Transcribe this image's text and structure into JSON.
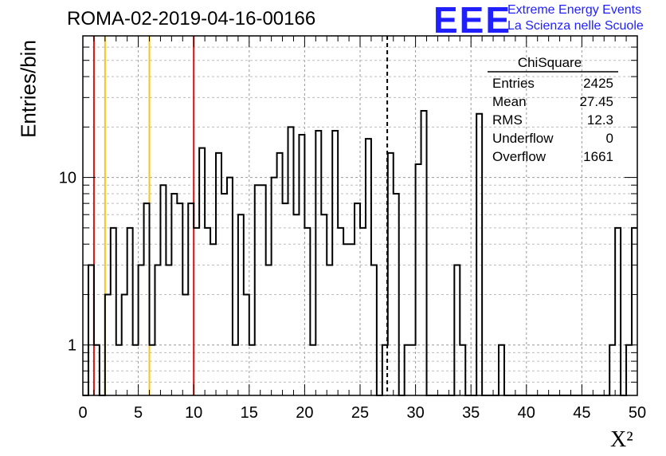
{
  "header": {
    "title": "ROMA-02-2019-04-16-00166",
    "brand_logo": "EEE",
    "brand_line1": "Extreme Energy Events",
    "brand_line2": "La Scienza nelle Scuole"
  },
  "stats_box": {
    "title": "ChiSquare",
    "rows": [
      {
        "label": "Entries",
        "value": "2425"
      },
      {
        "label": "Mean",
        "value": "27.45"
      },
      {
        "label": "RMS",
        "value": "12.3"
      },
      {
        "label": "Underflow",
        "value": "0"
      },
      {
        "label": "Overflow",
        "value": "1661"
      }
    ]
  },
  "colors": {
    "red_line": "#dd1111",
    "yellow_line": "#f5c518",
    "brand": "#1f1fff"
  },
  "chart_data": {
    "type": "histogram",
    "title": "ROMA-02-2019-04-16-00166",
    "xlabel": "X²",
    "ylabel": "Entries/bin",
    "xlim": [
      0,
      50
    ],
    "ylim": [
      0.5,
      70
    ],
    "yscale": "log",
    "grid": true,
    "bin_width": 0.5,
    "x_ticks": [
      "0",
      "5",
      "10",
      "15",
      "20",
      "25",
      "30",
      "35",
      "40",
      "45",
      "50"
    ],
    "y_ticks": [
      "1",
      "10"
    ],
    "values": [
      0,
      3,
      1,
      0,
      2,
      5,
      1,
      2,
      5,
      1,
      3,
      7,
      1,
      3,
      9,
      3,
      8,
      7,
      2,
      7,
      5,
      15,
      5,
      4,
      14,
      8,
      10,
      1,
      6,
      2,
      1,
      9,
      9,
      3,
      10,
      14,
      7,
      20,
      6,
      18,
      5,
      1,
      19,
      6,
      3,
      19,
      5,
      4,
      4,
      7,
      5,
      17,
      3,
      0,
      1,
      14,
      8,
      0,
      1,
      1,
      12,
      25,
      0,
      0,
      0,
      0,
      0,
      3,
      1,
      0,
      0,
      24,
      0,
      0,
      0,
      1,
      0,
      0,
      0,
      0,
      0,
      0,
      0,
      0,
      0,
      0,
      0,
      0,
      0,
      0,
      0,
      0,
      0,
      0,
      0,
      1,
      5,
      0,
      1,
      5
    ],
    "vertical_lines": [
      {
        "x": 1,
        "color": "red"
      },
      {
        "x": 10,
        "color": "red"
      },
      {
        "x": 2,
        "color": "yellow"
      },
      {
        "x": 6,
        "color": "yellow"
      },
      {
        "x": 27.45,
        "color": "black",
        "style": "dashed"
      }
    ]
  }
}
